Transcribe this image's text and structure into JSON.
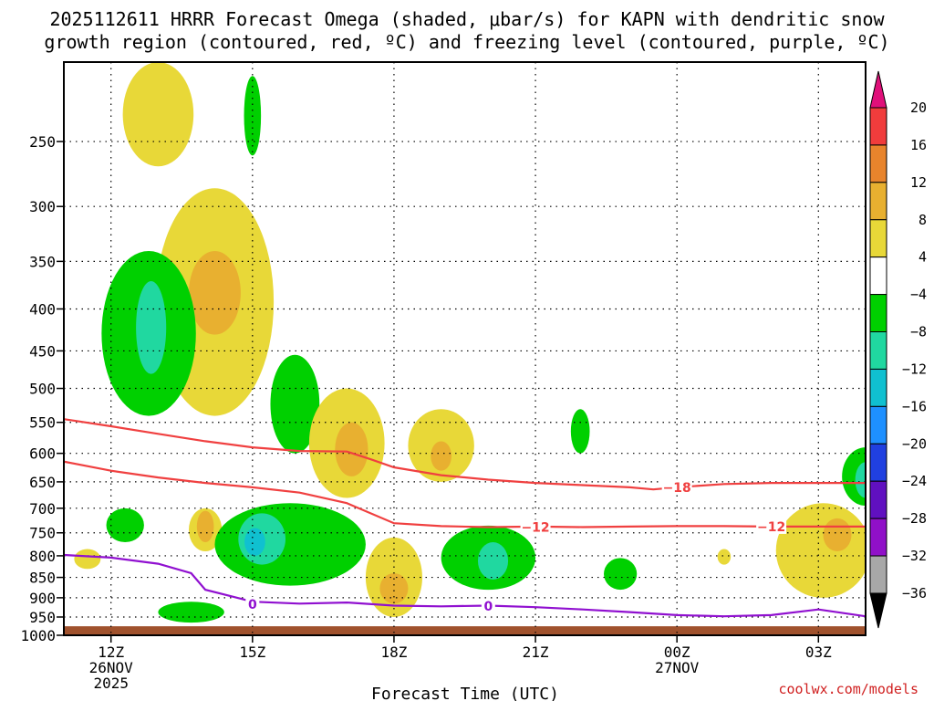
{
  "title_line1": "2025112611 HRRR Forecast Omega (shaded, μbar/s) for KAPN with dendritic snow",
  "title_line2": "growth region (contoured, red, ºC) and freezing level (contoured, purple, ºC)",
  "credit": "coolwx.com/models",
  "chart_data": {
    "type": "heatmap",
    "title": "2025112611 HRRR Forecast Omega (shaded, μbar/s) for KAPN with dendritic snow growth region (contoured, red, ºC) and freezing level (contoured, purple, ºC)",
    "xlabel": "Forecast Time (UTC)",
    "ylabel": "",
    "y_scale": "log-pressure (hPa), inverted",
    "ylim": [
      1000,
      200
    ],
    "xlim_hours_since_2025-11-26T11Z": [
      0,
      17
    ],
    "grid": true,
    "x_ticks": [
      {
        "hour": 1,
        "label": "12Z",
        "sub1": "26NOV",
        "sub2": "2025"
      },
      {
        "hour": 4,
        "label": "15Z",
        "sub1": "",
        "sub2": ""
      },
      {
        "hour": 7,
        "label": "18Z",
        "sub1": "",
        "sub2": ""
      },
      {
        "hour": 10,
        "label": "21Z",
        "sub1": "",
        "sub2": ""
      },
      {
        "hour": 13,
        "label": "00Z",
        "sub1": "27NOV",
        "sub2": ""
      },
      {
        "hour": 16,
        "label": "03Z",
        "sub1": "",
        "sub2": ""
      }
    ],
    "y_ticks": [
      250,
      300,
      350,
      400,
      450,
      500,
      550,
      600,
      650,
      700,
      750,
      800,
      850,
      900,
      950,
      1000
    ],
    "colorbar": {
      "labels": [
        "20",
        "16",
        "12",
        "8",
        "4",
        "−4",
        "−8",
        "−12",
        "−16",
        "−20",
        "−24",
        "−28",
        "−32",
        "−36"
      ],
      "colors": [
        "#f03c3c",
        "#e8842c",
        "#e8b030",
        "#e8d838",
        "#ffffff",
        "#00d000",
        "#20d8a0",
        "#10c0d0",
        "#1e90ff",
        "#2040e0",
        "#6010c0",
        "#9010c8",
        "#a8a8a8"
      ],
      "top_arrow_color": "#e0107a",
      "bottom_arrow_color": "#000000"
    },
    "contours": [
      {
        "name": "−18",
        "color": "#f04040",
        "points": [
          [
            0,
            545
          ],
          [
            1,
            556
          ],
          [
            2,
            568
          ],
          [
            3,
            580
          ],
          [
            4,
            590
          ],
          [
            5,
            596
          ],
          [
            6,
            597
          ],
          [
            6.5,
            610
          ],
          [
            7,
            624
          ],
          [
            8,
            638
          ],
          [
            9,
            646
          ],
          [
            10,
            652
          ],
          [
            11,
            656
          ],
          [
            12,
            660
          ],
          [
            12.5,
            664
          ],
          [
            13,
            660
          ],
          [
            14,
            654
          ],
          [
            15,
            652
          ],
          [
            16,
            652
          ],
          [
            17,
            652
          ]
        ]
      },
      {
        "name": "−12",
        "color": "#f04040",
        "points": [
          [
            0,
            614
          ],
          [
            1,
            630
          ],
          [
            2,
            642
          ],
          [
            3,
            652
          ],
          [
            4,
            660
          ],
          [
            5,
            670
          ],
          [
            6,
            690
          ],
          [
            7,
            730
          ],
          [
            8,
            736
          ],
          [
            9,
            738
          ],
          [
            10,
            737
          ],
          [
            11,
            738
          ],
          [
            12,
            737
          ],
          [
            13,
            736
          ],
          [
            14,
            736
          ],
          [
            15,
            737
          ],
          [
            16,
            737
          ],
          [
            17,
            737
          ]
        ]
      },
      {
        "name": "0",
        "color": "#9010d0",
        "points": [
          [
            0,
            798
          ],
          [
            1,
            804
          ],
          [
            2,
            818
          ],
          [
            2.7,
            840
          ],
          [
            3,
            880
          ],
          [
            4,
            910
          ],
          [
            5,
            915
          ],
          [
            6,
            912
          ],
          [
            7,
            920
          ],
          [
            8,
            922
          ],
          [
            9,
            920
          ],
          [
            10,
            924
          ],
          [
            11,
            930
          ],
          [
            12,
            937
          ],
          [
            13,
            945
          ],
          [
            14,
            948
          ],
          [
            15,
            945
          ],
          [
            16,
            930
          ],
          [
            17,
            948
          ]
        ]
      }
    ],
    "contour_labels": [
      {
        "text": "−18",
        "hour": 13.0,
        "p": 660,
        "color": "#f04040"
      },
      {
        "text": "−12",
        "hour": 10.0,
        "p": 738,
        "color": "#f04040"
      },
      {
        "text": "−12",
        "hour": 15.0,
        "p": 737,
        "color": "#f04040"
      },
      {
        "text": "0",
        "hour": 4.0,
        "p": 916,
        "color": "#9010d0"
      },
      {
        "text": "0",
        "hour": 9.0,
        "p": 921,
        "color": "#9010d0"
      }
    ],
    "omega_regions": [
      {
        "value": 4,
        "color": "#e8d838",
        "center": [
          2.0,
          228
        ],
        "h_radius": 0.75,
        "p_top": 200,
        "p_bottom": 268
      },
      {
        "value": -4,
        "color": "#00d000",
        "center": [
          4.0,
          228
        ],
        "h_radius": 0.18,
        "p_top": 208,
        "p_bottom": 260
      },
      {
        "value": 4,
        "color": "#e8d838",
        "center": [
          3.2,
          380
        ],
        "h_radius": 1.25,
        "p_top": 285,
        "p_bottom": 540
      },
      {
        "value": 8,
        "color": "#e8b030",
        "center": [
          3.2,
          385
        ],
        "h_radius": 0.55,
        "p_top": 340,
        "p_bottom": 430
      },
      {
        "value": -4,
        "color": "#00d000",
        "center": [
          1.8,
          420
        ],
        "h_radius": 1.0,
        "p_top": 340,
        "p_bottom": 540
      },
      {
        "value": -8,
        "color": "#20d8a0",
        "center": [
          1.85,
          420
        ],
        "h_radius": 0.32,
        "p_top": 370,
        "p_bottom": 480
      },
      {
        "value": -4,
        "color": "#00d000",
        "center": [
          4.9,
          520
        ],
        "h_radius": 0.52,
        "p_top": 455,
        "p_bottom": 600
      },
      {
        "value": 4,
        "color": "#e8d838",
        "center": [
          6.0,
          585
        ],
        "h_radius": 0.8,
        "p_top": 500,
        "p_bottom": 680
      },
      {
        "value": 8,
        "color": "#e8b030",
        "center": [
          6.1,
          590
        ],
        "h_radius": 0.35,
        "p_top": 550,
        "p_bottom": 640
      },
      {
        "value": 4,
        "color": "#e8d838",
        "center": [
          8.0,
          600
        ],
        "h_radius": 0.7,
        "p_top": 530,
        "p_bottom": 650
      },
      {
        "value": 8,
        "color": "#e8b030",
        "center": [
          8.0,
          605
        ],
        "h_radius": 0.22,
        "p_top": 580,
        "p_bottom": 630
      },
      {
        "value": -4,
        "color": "#00d000",
        "center": [
          10.95,
          565
        ],
        "h_radius": 0.2,
        "p_top": 530,
        "p_bottom": 600
      },
      {
        "value": -4,
        "color": "#00d000",
        "center": [
          1.3,
          735
        ],
        "h_radius": 0.4,
        "p_top": 700,
        "p_bottom": 770
      },
      {
        "value": 4,
        "color": "#e8d838",
        "center": [
          3.0,
          740
        ],
        "h_radius": 0.35,
        "p_top": 700,
        "p_bottom": 790
      },
      {
        "value": 8,
        "color": "#e8b030",
        "center": [
          3.0,
          735
        ],
        "h_radius": 0.18,
        "p_top": 705,
        "p_bottom": 770
      },
      {
        "value": 4,
        "color": "#e8d838",
        "center": [
          0.5,
          810
        ],
        "h_radius": 0.28,
        "p_top": 785,
        "p_bottom": 830
      },
      {
        "value": -4,
        "color": "#00d000",
        "center": [
          4.8,
          770
        ],
        "h_radius": 1.6,
        "p_top": 690,
        "p_bottom": 870
      },
      {
        "value": -8,
        "color": "#20d8a0",
        "center": [
          4.2,
          765
        ],
        "h_radius": 0.5,
        "p_top": 710,
        "p_bottom": 820
      },
      {
        "value": -12,
        "color": "#10c0d0",
        "center": [
          4.05,
          765
        ],
        "h_radius": 0.22,
        "p_top": 740,
        "p_bottom": 800
      },
      {
        "value": -4,
        "color": "#00d000",
        "center": [
          2.7,
          935
        ],
        "h_radius": 0.7,
        "p_top": 910,
        "p_bottom": 965
      },
      {
        "value": 4,
        "color": "#e8d838",
        "center": [
          7.0,
          860
        ],
        "h_radius": 0.6,
        "p_top": 760,
        "p_bottom": 950
      },
      {
        "value": 8,
        "color": "#e8b030",
        "center": [
          7.0,
          880
        ],
        "h_radius": 0.3,
        "p_top": 840,
        "p_bottom": 915
      },
      {
        "value": -4,
        "color": "#00d000",
        "center": [
          9.0,
          810
        ],
        "h_radius": 1.0,
        "p_top": 735,
        "p_bottom": 880
      },
      {
        "value": -8,
        "color": "#20d8a0",
        "center": [
          9.1,
          810
        ],
        "h_radius": 0.32,
        "p_top": 770,
        "p_bottom": 855
      },
      {
        "value": -4,
        "color": "#00d000",
        "center": [
          11.8,
          840
        ],
        "h_radius": 0.35,
        "p_top": 805,
        "p_bottom": 880
      },
      {
        "value": 4,
        "color": "#e8d838",
        "center": [
          14.0,
          802
        ],
        "h_radius": 0.14,
        "p_top": 785,
        "p_bottom": 820
      },
      {
        "value": 4,
        "color": "#e8d838",
        "center": [
          16.1,
          790
        ],
        "h_radius": 1.0,
        "p_top": 690,
        "p_bottom": 900
      },
      {
        "value": 8,
        "color": "#e8b030",
        "center": [
          16.4,
          755
        ],
        "h_radius": 0.3,
        "p_top": 720,
        "p_bottom": 790
      },
      {
        "value": -4,
        "color": "#00d000",
        "center": [
          17.0,
          640
        ],
        "h_radius": 0.5,
        "p_top": 590,
        "p_bottom": 695
      },
      {
        "value": -8,
        "color": "#20d8a0",
        "center": [
          17.0,
          645
        ],
        "h_radius": 0.22,
        "p_top": 615,
        "p_bottom": 680
      }
    ],
    "ground": {
      "color": "#a0522d",
      "p_top": 975,
      "p_bottom": 1000
    }
  }
}
